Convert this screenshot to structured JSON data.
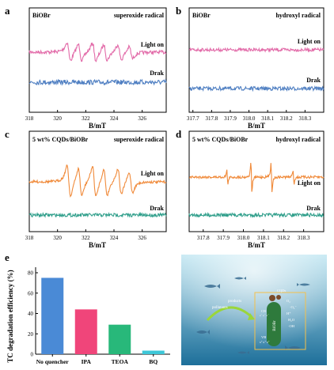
{
  "colors": {
    "light_a": "#e26aa8",
    "dark_a": "#4f7fc2",
    "light_c": "#f08a3a",
    "dark_c": "#2e9e8a",
    "bars": [
      "#4a8ad6",
      "#f0457a",
      "#28b87a",
      "#3ec7d8"
    ],
    "sea_top": "#bfe6f2",
    "sea_bottom": "#1d6f9a",
    "catalyst": "#2e7a3c"
  },
  "chart_data": [
    {
      "panel": "a",
      "type": "line",
      "sample": "BiOBr",
      "radical": "superoxide radical",
      "xlabel": "B/mT",
      "xlim": [
        318,
        327.7
      ],
      "xticks": [
        "318",
        "320",
        "322",
        "324",
        "326"
      ],
      "series": [
        {
          "name": "Light on",
          "signal": "DMPO-O2 (weak)"
        },
        {
          "name": "Drak",
          "signal": "baseline"
        }
      ]
    },
    {
      "panel": "b",
      "type": "line",
      "sample": "BiOBr",
      "radical": "hydroxyl radical",
      "xlabel": "B/mT",
      "xlim": [
        317.68,
        318.4
      ],
      "xticks": [
        "317.7",
        "317.8",
        "317.9",
        "318.0",
        "318.1",
        "318.2",
        "318.3"
      ],
      "series": [
        {
          "name": "Light on",
          "signal": "baseline"
        },
        {
          "name": "Drak",
          "signal": "baseline"
        }
      ]
    },
    {
      "panel": "c",
      "type": "line",
      "sample": "5 wt% CQDs/BiOBr",
      "radical": "superoxide radical",
      "xlabel": "B/mT",
      "xlim": [
        318,
        327.7
      ],
      "xticks": [
        "318",
        "320",
        "322",
        "324",
        "326"
      ],
      "series": [
        {
          "name": "Light on",
          "signal": "DMPO-O2 (strong)"
        },
        {
          "name": "Drak",
          "signal": "baseline"
        }
      ]
    },
    {
      "panel": "d",
      "type": "line",
      "sample": "5 wt% CQDs/BiOBr",
      "radical": "hydroxyl radical",
      "xlabel": "B/mT",
      "xlim": [
        317.73,
        318.4
      ],
      "xticks": [
        "317.8",
        "317.9",
        "318.0",
        "318.1",
        "318.2",
        "318.3"
      ],
      "series": [
        {
          "name": "Light on",
          "signal": "DMPO-OH quartet"
        },
        {
          "name": "Drak",
          "signal": "baseline"
        }
      ]
    },
    {
      "panel": "e",
      "type": "bar",
      "ylabel": "TC degradation efficiency (%)",
      "ylim": [
        0,
        80
      ],
      "yticks": [
        "0",
        "20",
        "40",
        "60",
        "80"
      ],
      "categories": [
        "No quencher",
        "IPA",
        "TEOA",
        "BQ"
      ],
      "values": [
        75,
        44,
        29,
        3.5
      ]
    }
  ],
  "panel_f": {
    "label": "f",
    "annotations": {
      "cqds": "CQDs",
      "pollutants": "pollutants",
      "products": "products",
      "cb": "CB",
      "vb": "VB",
      "catalyst": "BiOBr",
      "o2": "O₂",
      "superoxide": "·O₂⁻",
      "hplus": "H⁺",
      "h2o": "H₂O",
      "oh": "·OH",
      "electrons": "e⁻ e⁻ e⁻",
      "holes": "h⁺ h⁺ h⁺"
    }
  }
}
